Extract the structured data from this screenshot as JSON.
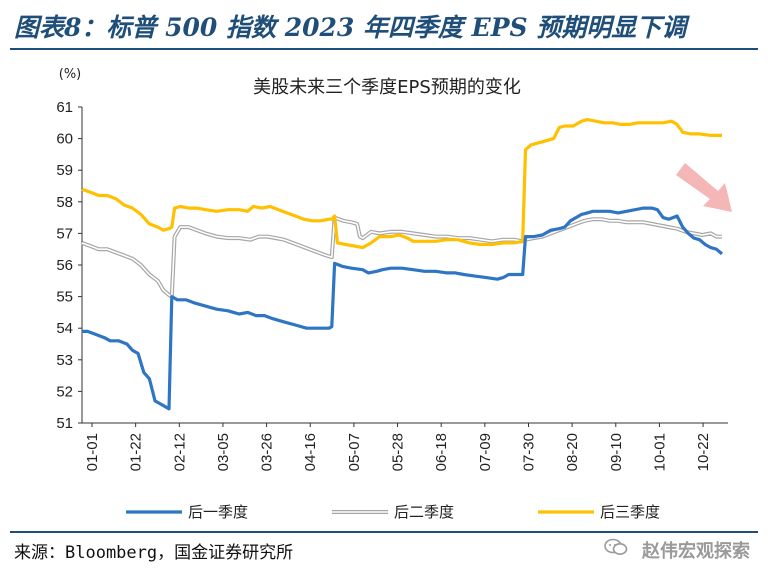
{
  "header": {
    "figure_title": "图表8：标普 500 指数 2023 年四季度 EPS 预期明显下调"
  },
  "footer": {
    "source": "来源：Bloomberg，国金证券研究所",
    "watermark": "赵伟宏观探索"
  },
  "icons": [
    "wechat-icon",
    "arrow-down-right-icon"
  ],
  "colors": {
    "title_blue": "#1f4e79",
    "series_q1": "#2e75c4",
    "series_q2": "#a6a6a6",
    "series_q3": "#ffc000",
    "arrow": "#f4b6b6"
  },
  "chart_data": {
    "type": "line",
    "title": "美股未来三个季度EPS预期的变化",
    "yunit": "(%)",
    "ylim": [
      51,
      61
    ],
    "yticks": [
      "51",
      "52",
      "53",
      "54",
      "55",
      "56",
      "57",
      "58",
      "59",
      "60",
      "61"
    ],
    "xticks": [
      "01-01",
      "01-22",
      "02-12",
      "03-05",
      "03-26",
      "04-16",
      "05-07",
      "05-28",
      "06-18",
      "07-09",
      "07-30",
      "08-20",
      "09-10",
      "10-01",
      "10-22"
    ],
    "legend_position": "bottom",
    "grid": false,
    "series": [
      {
        "name": "后一季度",
        "color": "#2e75c4",
        "points": [
          [
            0,
            53.9
          ],
          [
            2,
            53.9
          ],
          [
            5,
            53.8
          ],
          [
            8,
            53.7
          ],
          [
            10,
            53.6
          ],
          [
            13,
            53.6
          ],
          [
            16,
            53.5
          ],
          [
            18,
            53.3
          ],
          [
            20,
            53.2
          ],
          [
            22,
            52.6
          ],
          [
            24,
            52.4
          ],
          [
            26,
            51.7
          ],
          [
            28,
            51.6
          ],
          [
            30,
            51.5
          ],
          [
            31,
            51.45
          ],
          [
            32,
            55.0
          ],
          [
            34,
            54.9
          ],
          [
            37,
            54.9
          ],
          [
            40,
            54.8
          ],
          [
            44,
            54.7
          ],
          [
            48,
            54.6
          ],
          [
            52,
            54.55
          ],
          [
            54,
            54.5
          ],
          [
            56,
            54.45
          ],
          [
            59,
            54.5
          ],
          [
            62,
            54.4
          ],
          [
            65,
            54.4
          ],
          [
            68,
            54.3
          ],
          [
            72,
            54.2
          ],
          [
            76,
            54.1
          ],
          [
            80,
            54.0
          ],
          [
            84,
            54.0
          ],
          [
            88,
            54.0
          ],
          [
            89,
            54.05
          ],
          [
            90,
            56.05
          ],
          [
            93,
            55.95
          ],
          [
            96,
            55.9
          ],
          [
            100,
            55.85
          ],
          [
            102,
            55.75
          ],
          [
            105,
            55.8
          ],
          [
            107,
            55.85
          ],
          [
            110,
            55.9
          ],
          [
            114,
            55.9
          ],
          [
            118,
            55.85
          ],
          [
            122,
            55.8
          ],
          [
            126,
            55.8
          ],
          [
            130,
            55.75
          ],
          [
            133,
            55.75
          ],
          [
            136,
            55.7
          ],
          [
            140,
            55.65
          ],
          [
            144,
            55.6
          ],
          [
            148,
            55.55
          ],
          [
            150,
            55.6
          ],
          [
            152,
            55.7
          ],
          [
            155,
            55.7
          ],
          [
            157,
            55.7
          ],
          [
            158,
            56.9
          ],
          [
            161,
            56.9
          ],
          [
            164,
            56.95
          ],
          [
            167,
            57.1
          ],
          [
            170,
            57.15
          ],
          [
            172,
            57.2
          ],
          [
            174,
            57.4
          ],
          [
            176,
            57.5
          ],
          [
            178,
            57.6
          ],
          [
            180,
            57.65
          ],
          [
            182,
            57.7
          ],
          [
            185,
            57.7
          ],
          [
            188,
            57.7
          ],
          [
            191,
            57.65
          ],
          [
            194,
            57.7
          ],
          [
            197,
            57.75
          ],
          [
            200,
            57.8
          ],
          [
            203,
            57.8
          ],
          [
            205,
            57.75
          ],
          [
            207,
            57.5
          ],
          [
            209,
            57.45
          ],
          [
            212,
            57.55
          ],
          [
            214,
            57.2
          ],
          [
            216,
            57.0
          ],
          [
            218,
            56.85
          ],
          [
            220,
            56.8
          ],
          [
            222,
            56.65
          ],
          [
            224,
            56.55
          ],
          [
            226,
            56.5
          ],
          [
            228,
            56.35
          ]
        ]
      },
      {
        "name": "后二季度",
        "color": "#a6a6a6",
        "points": [
          [
            0,
            56.7
          ],
          [
            3,
            56.6
          ],
          [
            6,
            56.5
          ],
          [
            9,
            56.5
          ],
          [
            12,
            56.4
          ],
          [
            15,
            56.3
          ],
          [
            18,
            56.2
          ],
          [
            21,
            56.0
          ],
          [
            24,
            55.7
          ],
          [
            27,
            55.5
          ],
          [
            29,
            55.2
          ],
          [
            31,
            55.05
          ],
          [
            32,
            55.0
          ],
          [
            33,
            56.9
          ],
          [
            35,
            57.2
          ],
          [
            38,
            57.2
          ],
          [
            41,
            57.1
          ],
          [
            44,
            57.0
          ],
          [
            48,
            56.9
          ],
          [
            52,
            56.85
          ],
          [
            56,
            56.85
          ],
          [
            60,
            56.8
          ],
          [
            63,
            56.9
          ],
          [
            66,
            56.9
          ],
          [
            69,
            56.85
          ],
          [
            72,
            56.8
          ],
          [
            75,
            56.7
          ],
          [
            78,
            56.6
          ],
          [
            81,
            56.5
          ],
          [
            84,
            56.4
          ],
          [
            87,
            56.3
          ],
          [
            89,
            56.25
          ],
          [
            90,
            57.5
          ],
          [
            93,
            57.4
          ],
          [
            96,
            57.35
          ],
          [
            98,
            57.3
          ],
          [
            99,
            56.9
          ],
          [
            100,
            56.85
          ],
          [
            103,
            57.05
          ],
          [
            106,
            57.0
          ],
          [
            110,
            57.05
          ],
          [
            114,
            57.05
          ],
          [
            118,
            57.0
          ],
          [
            122,
            56.95
          ],
          [
            126,
            56.9
          ],
          [
            130,
            56.9
          ],
          [
            134,
            56.85
          ],
          [
            138,
            56.85
          ],
          [
            142,
            56.8
          ],
          [
            146,
            56.75
          ],
          [
            150,
            56.8
          ],
          [
            154,
            56.8
          ],
          [
            157,
            56.75
          ],
          [
            158,
            56.8
          ],
          [
            161,
            56.85
          ],
          [
            164,
            56.9
          ],
          [
            167,
            57.0
          ],
          [
            170,
            57.1
          ],
          [
            173,
            57.2
          ],
          [
            176,
            57.3
          ],
          [
            179,
            57.4
          ],
          [
            182,
            57.45
          ],
          [
            185,
            57.45
          ],
          [
            188,
            57.4
          ],
          [
            191,
            57.4
          ],
          [
            194,
            57.35
          ],
          [
            197,
            57.35
          ],
          [
            200,
            57.35
          ],
          [
            203,
            57.3
          ],
          [
            206,
            57.25
          ],
          [
            209,
            57.2
          ],
          [
            212,
            57.15
          ],
          [
            215,
            57.05
          ],
          [
            218,
            57.0
          ],
          [
            221,
            56.95
          ],
          [
            224,
            57.0
          ],
          [
            226,
            56.9
          ],
          [
            228,
            56.9
          ]
        ]
      },
      {
        "name": "后三季度",
        "color": "#ffc000",
        "points": [
          [
            0,
            58.4
          ],
          [
            3,
            58.3
          ],
          [
            6,
            58.2
          ],
          [
            9,
            58.2
          ],
          [
            12,
            58.1
          ],
          [
            15,
            57.9
          ],
          [
            18,
            57.8
          ],
          [
            21,
            57.6
          ],
          [
            24,
            57.3
          ],
          [
            27,
            57.2
          ],
          [
            29,
            57.1
          ],
          [
            31,
            57.15
          ],
          [
            32,
            57.2
          ],
          [
            33,
            57.8
          ],
          [
            35,
            57.85
          ],
          [
            38,
            57.8
          ],
          [
            41,
            57.8
          ],
          [
            44,
            57.75
          ],
          [
            48,
            57.7
          ],
          [
            52,
            57.75
          ],
          [
            56,
            57.75
          ],
          [
            59,
            57.7
          ],
          [
            61,
            57.85
          ],
          [
            64,
            57.8
          ],
          [
            67,
            57.85
          ],
          [
            70,
            57.75
          ],
          [
            73,
            57.65
          ],
          [
            76,
            57.55
          ],
          [
            79,
            57.45
          ],
          [
            82,
            57.4
          ],
          [
            85,
            57.4
          ],
          [
            88,
            57.45
          ],
          [
            89,
            57.45
          ],
          [
            90,
            57.55
          ],
          [
            91,
            56.7
          ],
          [
            94,
            56.65
          ],
          [
            97,
            56.6
          ],
          [
            100,
            56.55
          ],
          [
            103,
            56.7
          ],
          [
            106,
            56.9
          ],
          [
            110,
            56.9
          ],
          [
            113,
            56.95
          ],
          [
            116,
            56.85
          ],
          [
            118,
            56.75
          ],
          [
            122,
            56.75
          ],
          [
            126,
            56.75
          ],
          [
            130,
            56.8
          ],
          [
            134,
            56.8
          ],
          [
            138,
            56.7
          ],
          [
            142,
            56.65
          ],
          [
            146,
            56.65
          ],
          [
            150,
            56.7
          ],
          [
            154,
            56.7
          ],
          [
            157,
            56.75
          ],
          [
            158,
            59.65
          ],
          [
            160,
            59.8
          ],
          [
            162,
            59.85
          ],
          [
            164,
            59.9
          ],
          [
            166,
            59.95
          ],
          [
            168,
            60.0
          ],
          [
            170,
            60.35
          ],
          [
            172,
            60.4
          ],
          [
            175,
            60.4
          ],
          [
            178,
            60.55
          ],
          [
            180,
            60.6
          ],
          [
            183,
            60.55
          ],
          [
            186,
            60.5
          ],
          [
            189,
            60.5
          ],
          [
            192,
            60.45
          ],
          [
            195,
            60.45
          ],
          [
            198,
            60.5
          ],
          [
            201,
            60.5
          ],
          [
            204,
            60.5
          ],
          [
            207,
            60.5
          ],
          [
            210,
            60.55
          ],
          [
            212,
            60.45
          ],
          [
            214,
            60.2
          ],
          [
            217,
            60.15
          ],
          [
            220,
            60.15
          ],
          [
            224,
            60.1
          ],
          [
            228,
            60.1
          ]
        ]
      }
    ]
  }
}
